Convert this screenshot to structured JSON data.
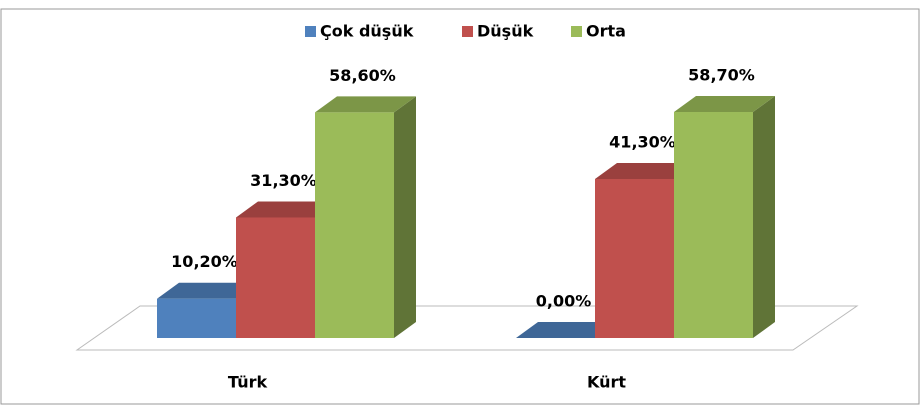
{
  "chart_data": {
    "type": "bar3d",
    "categories": [
      "Türk",
      "Kürt"
    ],
    "series": [
      {
        "name": "Çok düşük",
        "color": "#4f81bd",
        "values": [
          10.2,
          0
        ],
        "value_labels": [
          "10,20%",
          "0,00%"
        ]
      },
      {
        "name": "Düşük",
        "color": "#c0504d",
        "values": [
          31.3,
          41.3
        ],
        "value_labels": [
          "31,30%",
          "41,30%"
        ]
      },
      {
        "name": "Orta",
        "color": "#9bbb59",
        "values": [
          58.6,
          58.7
        ],
        "value_labels": [
          "58,60%",
          "58,70%"
        ]
      }
    ],
    "legend": "top"
  }
}
